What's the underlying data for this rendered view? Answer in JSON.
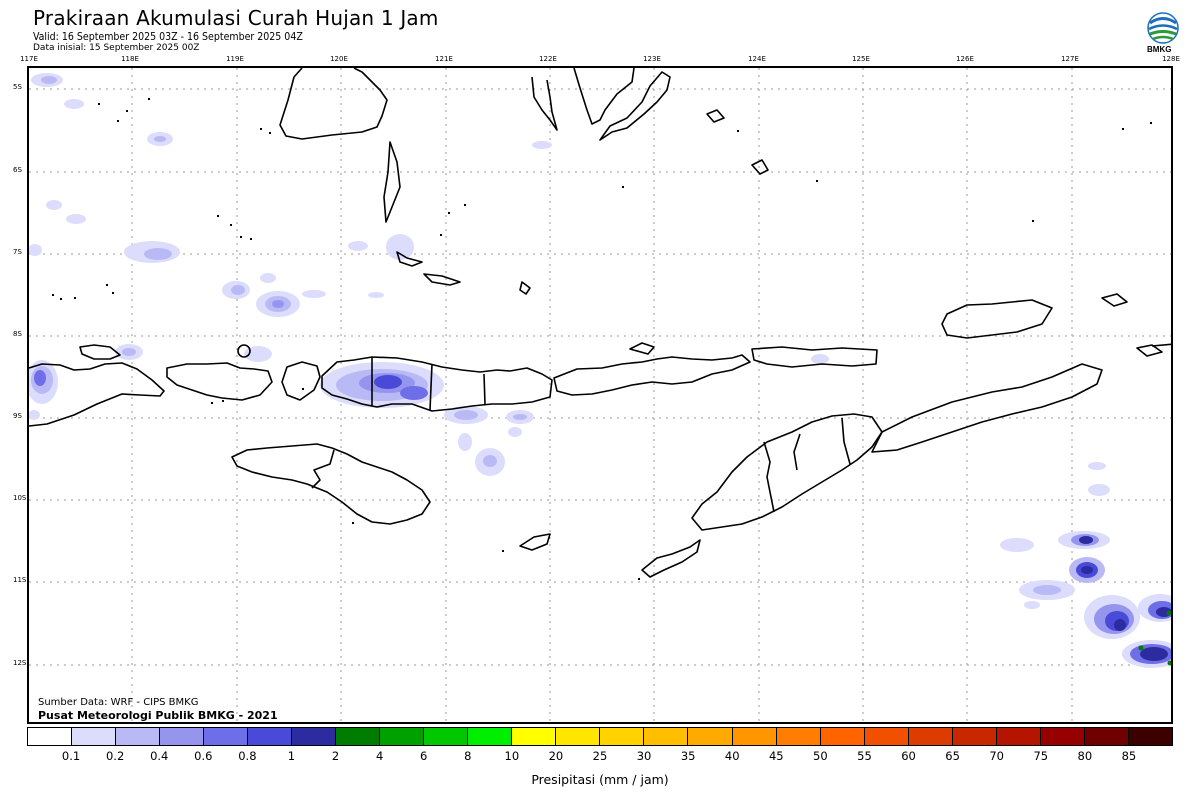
{
  "header": {
    "title": "Prakiraan Akumulasi Curah Hujan 1 Jam",
    "valid": "Valid: 16 September 2025 03Z - 16 September 2025 04Z",
    "initial": "Data inisial: 15 September 2025 00Z",
    "logo_text": "BMKG"
  },
  "map": {
    "lon_labels": [
      "117E",
      "118E",
      "119E",
      "120E",
      "121E",
      "122E",
      "123E",
      "124E",
      "125E",
      "126E",
      "127E",
      "128E"
    ],
    "lat_labels": [
      "5S",
      "6S",
      "7S",
      "8S",
      "9S",
      "10S",
      "11S",
      "12S"
    ]
  },
  "footer": {
    "source": "Sumber Data: WRF - CIPS BMKG",
    "center": "Pusat Meteorologi Publik BMKG - 2021"
  },
  "colorbar": {
    "colors": [
      "#ffffff",
      "#dcdcfc",
      "#b9b9f5",
      "#9595ee",
      "#6e6ee8",
      "#4a4ad8",
      "#2c2ca0",
      "#007d00",
      "#00a000",
      "#00c800",
      "#00ee00",
      "#ffff00",
      "#ffe600",
      "#ffd200",
      "#ffbe00",
      "#ffaa00",
      "#ff9600",
      "#ff7d00",
      "#ff6400",
      "#f05000",
      "#dc3c00",
      "#c82800",
      "#b41400",
      "#960000",
      "#6e0000",
      "#3c0000"
    ],
    "labels": [
      "0.1",
      "0.2",
      "0.4",
      "0.6",
      "0.8",
      "1",
      "2",
      "4",
      "6",
      "8",
      "10",
      "20",
      "25",
      "30",
      "35",
      "40",
      "45",
      "50",
      "55",
      "60",
      "65",
      "70",
      "75",
      "80",
      "85"
    ],
    "unit_label": "Presipitasi (mm / jam)"
  }
}
